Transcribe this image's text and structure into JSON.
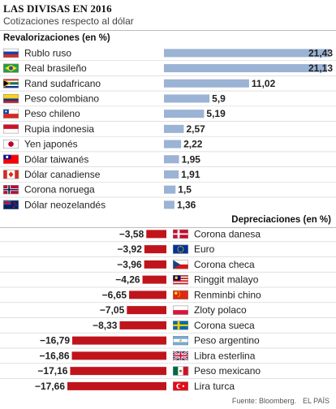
{
  "header": {
    "title": "LAS DIVISAS EN 2016",
    "subtitle": "Cotizaciones respecto al dólar"
  },
  "sections": {
    "up_label": "Revalorizaciones (en %)",
    "down_label": "Depreciaciones (en %)"
  },
  "footer": {
    "source": "Fuente: Bloomberg.",
    "brand": "EL PAÍS"
  },
  "colors": {
    "positive_bar": "#9bb3d4",
    "negative_bar": "#c0141c",
    "row_divider": "#d6d6d6"
  },
  "chart_data": [
    {
      "type": "bar",
      "orientation": "horizontal",
      "categories": [
        "Rublo ruso",
        "Real brasileño",
        "Rand sudafricano",
        "Peso colombiano",
        "Peso chileno",
        "Rupia indonesia",
        "Yen japonés",
        "Dólar taiwanés",
        "Dólar canadiense",
        "Corona noruega",
        "Dólar neozelandés"
      ],
      "values": [
        21.43,
        21.13,
        11.02,
        5.9,
        5.19,
        2.57,
        2.22,
        1.95,
        1.91,
        1.5,
        1.36
      ],
      "value_labels": [
        "21,43",
        "21,13",
        "11,02",
        "5,9",
        "5,19",
        "2,57",
        "2,22",
        "1,95",
        "1,91",
        "1,5",
        "1,36"
      ],
      "flags": [
        "russia-flag",
        "brazil-flag",
        "south-africa-flag",
        "colombia-flag",
        "chile-flag",
        "indonesia-flag",
        "japan-flag",
        "taiwan-flag",
        "canada-flag",
        "norway-flag",
        "new-zealand-flag"
      ],
      "legend": "none"
    },
    {
      "type": "bar",
      "orientation": "horizontal",
      "categories": [
        "Corona danesa",
        "Euro",
        "Corona checa",
        "Ringgit malayo",
        "Renminbi chino",
        "Zloty polaco",
        "Corona sueca",
        "Peso argentino",
        "Libra esterlina",
        "Peso mexicano",
        "Lira turca"
      ],
      "values": [
        -3.58,
        -3.92,
        -3.96,
        -4.26,
        -6.65,
        -7.05,
        -8.33,
        -16.79,
        -16.86,
        -17.16,
        -17.66
      ],
      "value_labels": [
        "−3,58",
        "−3,92",
        "−3,96",
        "−4,26",
        "−6,65",
        "−7,05",
        "−8,33",
        "−16,79",
        "−16,86",
        "−17,16",
        "−17,66"
      ],
      "flags": [
        "denmark-flag",
        "eu-flag",
        "czech-flag",
        "malaysia-flag",
        "china-flag",
        "poland-flag",
        "sweden-flag",
        "argentina-flag",
        "uk-flag",
        "mexico-flag",
        "turkey-flag"
      ],
      "legend": "none"
    }
  ]
}
